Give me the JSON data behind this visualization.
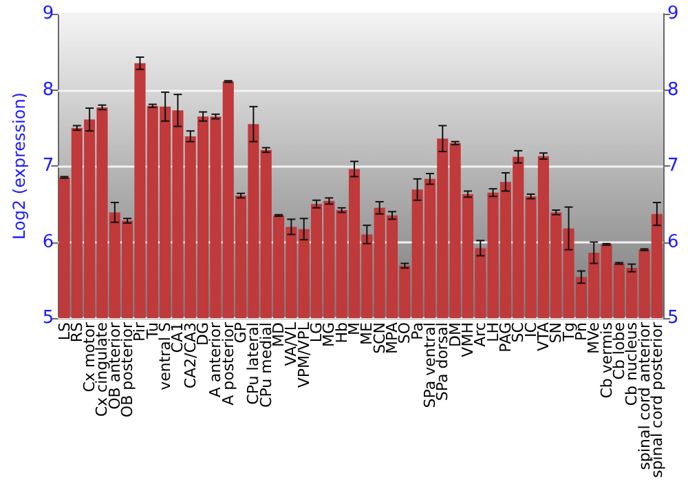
{
  "chart_data": {
    "type": "bar",
    "ylabel": "Log2 (expression)",
    "categories": [
      "LS",
      "RS",
      "Cx motor",
      "Cx cingulate",
      "OB anterior",
      "OB posterior",
      "Pir",
      "Tu",
      "ventral S",
      "CA1",
      "CA2/CA3",
      "DG",
      "A anterior",
      "A posterior",
      "GP",
      "CPu lateral",
      "CPu medial",
      "MD",
      "VA/VL",
      "VPM/VPL",
      "LG",
      "MG",
      "Hb",
      "M",
      "ME",
      "SCN",
      "MPA",
      "SO",
      "Pa",
      "SPa ventral",
      "SPa dorsal",
      "DM",
      "VMH",
      "Arc",
      "LH",
      "PAG",
      "SC",
      "IC",
      "VTA",
      "SN",
      "Tg",
      "Pn",
      "MVe",
      "Cb vermis",
      "Cb lobe",
      "Cb nucleus",
      "spinal cord anterior",
      "spinal cord posterior"
    ],
    "values": [
      6.85,
      7.5,
      7.61,
      7.77,
      6.39,
      6.28,
      8.35,
      7.79,
      7.78,
      7.73,
      7.39,
      7.65,
      7.65,
      8.11,
      6.61,
      7.55,
      7.21,
      6.35,
      6.2,
      6.17,
      6.5,
      6.54,
      6.42,
      6.96,
      6.1,
      6.45,
      6.35,
      5.69,
      6.69,
      6.83,
      7.36,
      7.3,
      6.63,
      5.92,
      6.65,
      6.79,
      7.12,
      6.6,
      7.13,
      6.39,
      6.18,
      5.54,
      5.86,
      5.97,
      5.72,
      5.66,
      5.9,
      6.37
    ],
    "errors": [
      0.01,
      0.03,
      0.15,
      0.03,
      0.13,
      0.03,
      0.08,
      0.02,
      0.19,
      0.21,
      0.07,
      0.06,
      0.03,
      0.01,
      0.03,
      0.23,
      0.03,
      0.01,
      0.1,
      0.14,
      0.05,
      0.04,
      0.03,
      0.1,
      0.12,
      0.08,
      0.05,
      0.03,
      0.14,
      0.07,
      0.17,
      0.02,
      0.04,
      0.1,
      0.05,
      0.12,
      0.08,
      0.03,
      0.04,
      0.03,
      0.28,
      0.08,
      0.14,
      0.01,
      0.01,
      0.05,
      0.01,
      0.15
    ],
    "color": "#c0393b",
    "ylim": [
      5,
      9
    ],
    "yticks": [
      5,
      6,
      7,
      8,
      9
    ],
    "y2lim": [
      5,
      9
    ],
    "y2ticks": [
      5,
      6,
      7,
      8,
      9
    ],
    "grid": "y"
  }
}
